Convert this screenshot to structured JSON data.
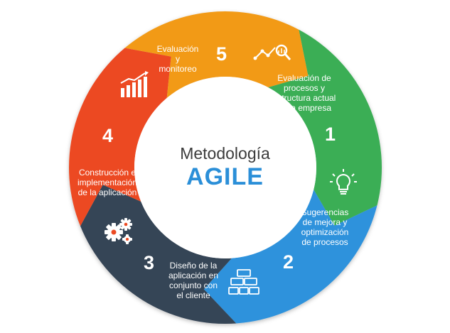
{
  "center": {
    "line1": "Metodología",
    "line2": "AGILE",
    "line2_color": "#2b8fd8"
  },
  "steps": [
    {
      "number": "1",
      "lines": [
        "Evaluación de",
        "procesos y",
        "estructura actual",
        "de la empresa"
      ],
      "color": "#3aae55",
      "icon": "analytics-magnifier-icon"
    },
    {
      "number": "2",
      "lines": [
        "Sugerencias",
        "de mejora y",
        "optimización",
        "de procesos"
      ],
      "color": "#2d92dc",
      "icon": "lightbulb-icon"
    },
    {
      "number": "3",
      "lines": [
        "Diseño de la",
        "aplicación en",
        "conjunto con",
        "el cliente"
      ],
      "color": "#364456",
      "icon": "bricks-icon"
    },
    {
      "number": "4",
      "lines": [
        "Construcción e",
        "implementación",
        "de la aplicación"
      ],
      "color": "#ec4a23",
      "icon": "gears-icon"
    },
    {
      "number": "5",
      "lines": [
        "Evaluación",
        "y",
        "monitoreo"
      ],
      "color": "#f29a19",
      "icon": "bar-chart-icon"
    }
  ]
}
